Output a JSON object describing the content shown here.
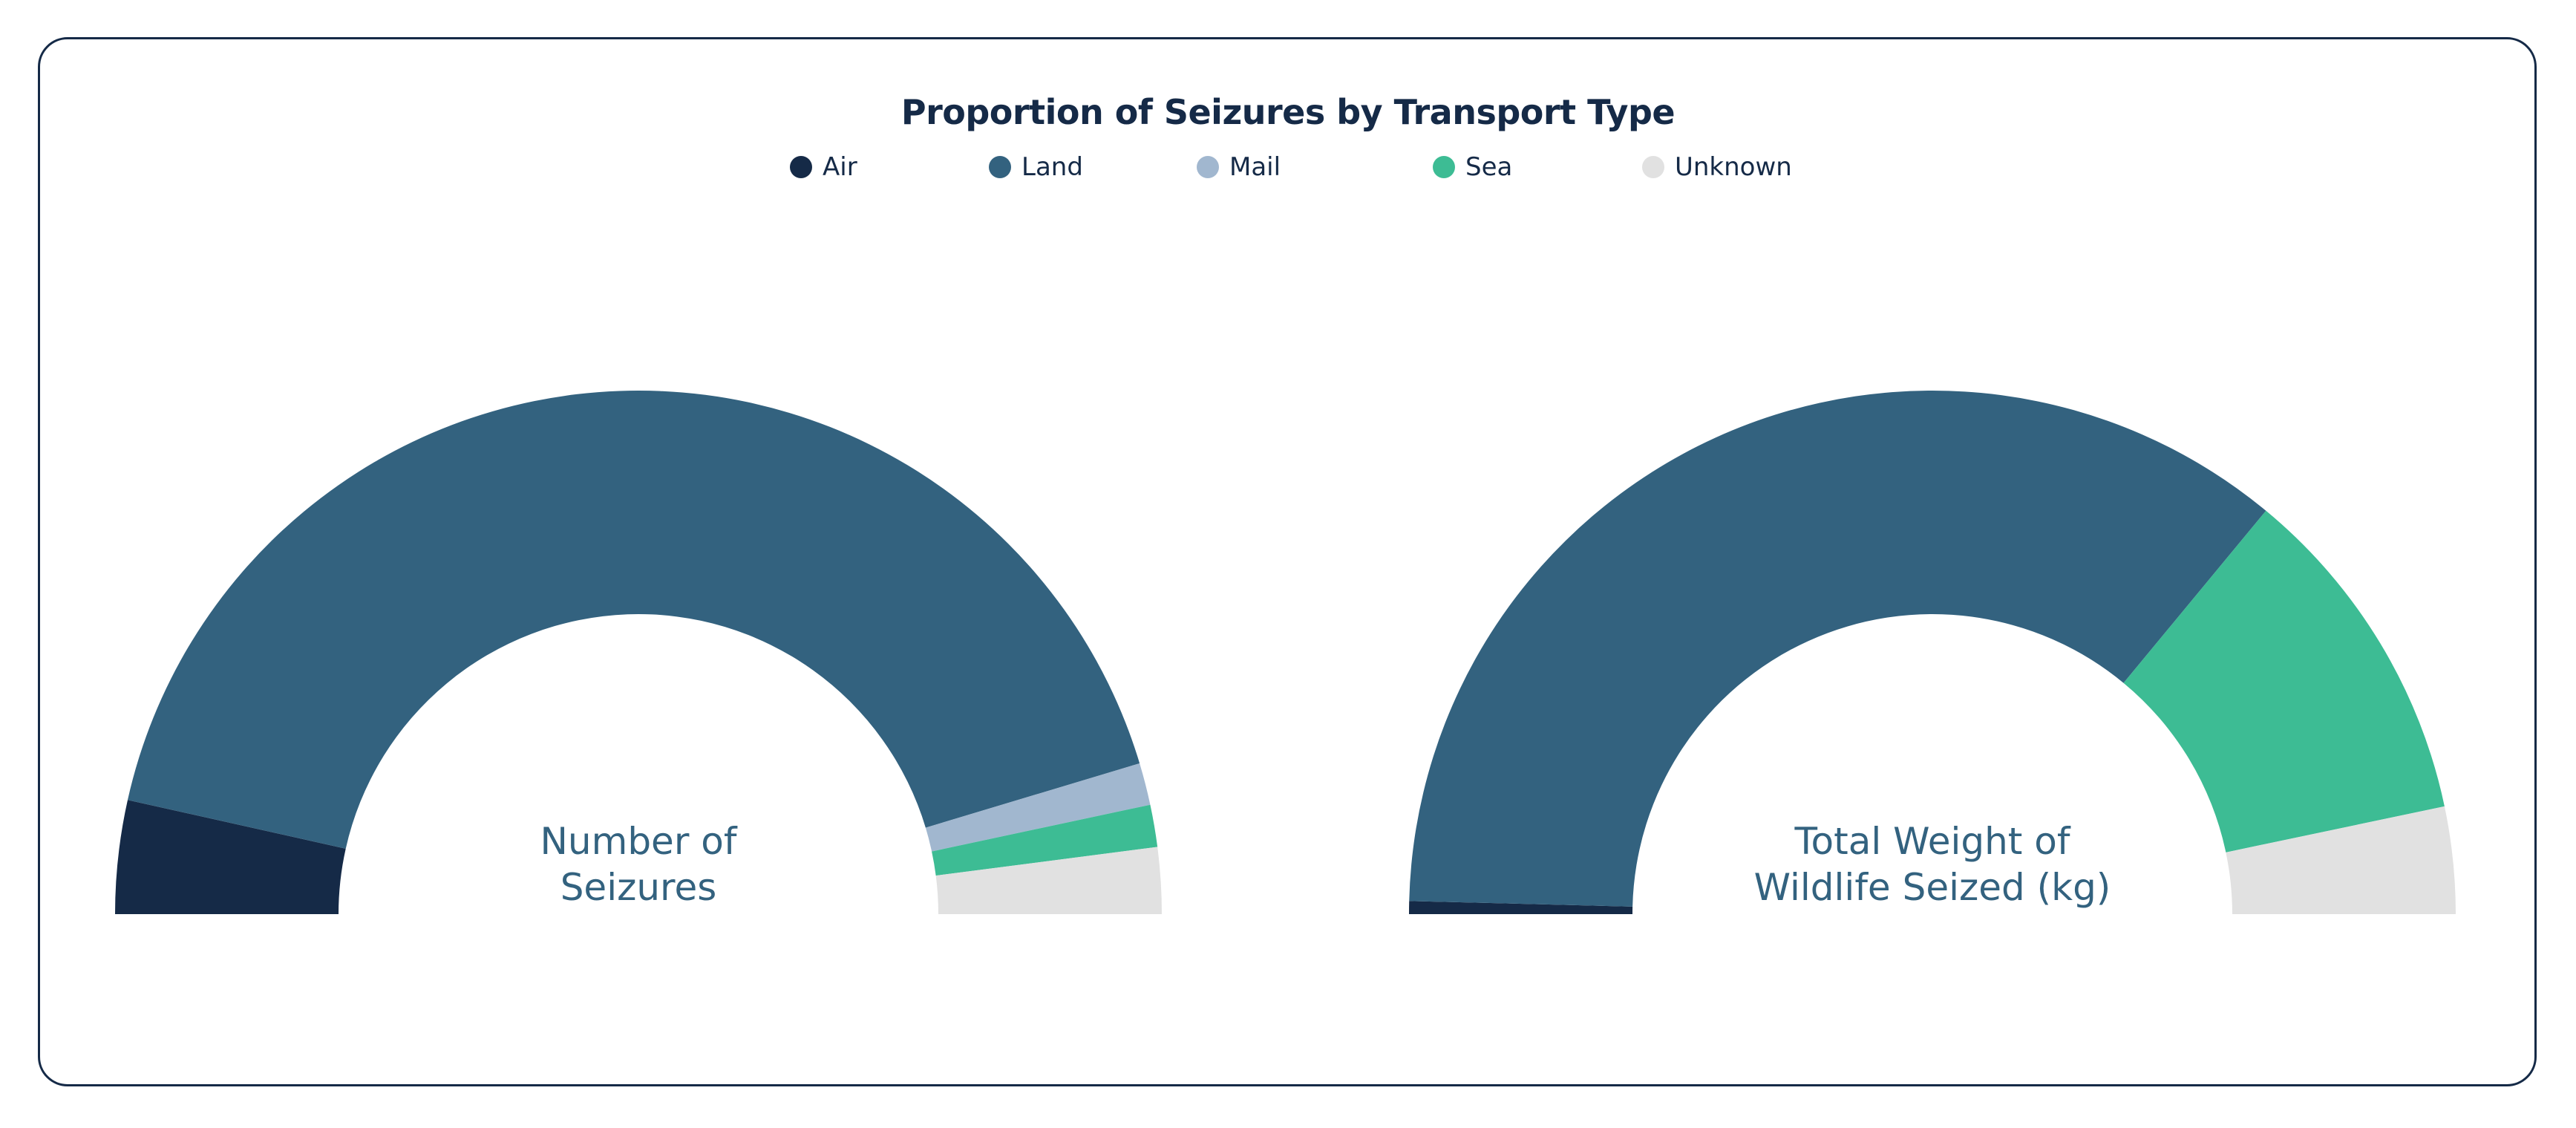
{
  "chart_data": {
    "type": "pie",
    "variant": "semi-donut",
    "title": "Proportion of Seizures by Transport Type",
    "legend": {
      "placement": "top",
      "entries": [
        {
          "name": "Air",
          "color": "#152a47"
        },
        {
          "name": "Land",
          "color": "#33627f"
        },
        {
          "name": "Mail",
          "color": "#a1b7cf"
        },
        {
          "name": "Sea",
          "color": "#3dbc94"
        },
        {
          "name": "Unknown",
          "color": "#e1e1e1"
        }
      ]
    },
    "charts": [
      {
        "label": [
          "Number of",
          "Seizures"
        ],
        "slices": [
          {
            "name": "Air",
            "percent": 7.0
          },
          {
            "name": "Land",
            "percent": 83.7
          },
          {
            "name": "Mail",
            "percent": 2.6
          },
          {
            "name": "Sea",
            "percent": 2.6
          },
          {
            "name": "Unknown",
            "percent": 4.1
          }
        ]
      },
      {
        "label": [
          "Total Weight of",
          "Wildlife Seized (kg)"
        ],
        "slices": [
          {
            "name": "Air",
            "percent": 0.8
          },
          {
            "name": "Land",
            "percent": 71.2
          },
          {
            "name": "Mail",
            "percent": 0.0
          },
          {
            "name": "Sea",
            "percent": 21.4
          },
          {
            "name": "Unknown",
            "percent": 6.6
          }
        ]
      }
    ]
  }
}
